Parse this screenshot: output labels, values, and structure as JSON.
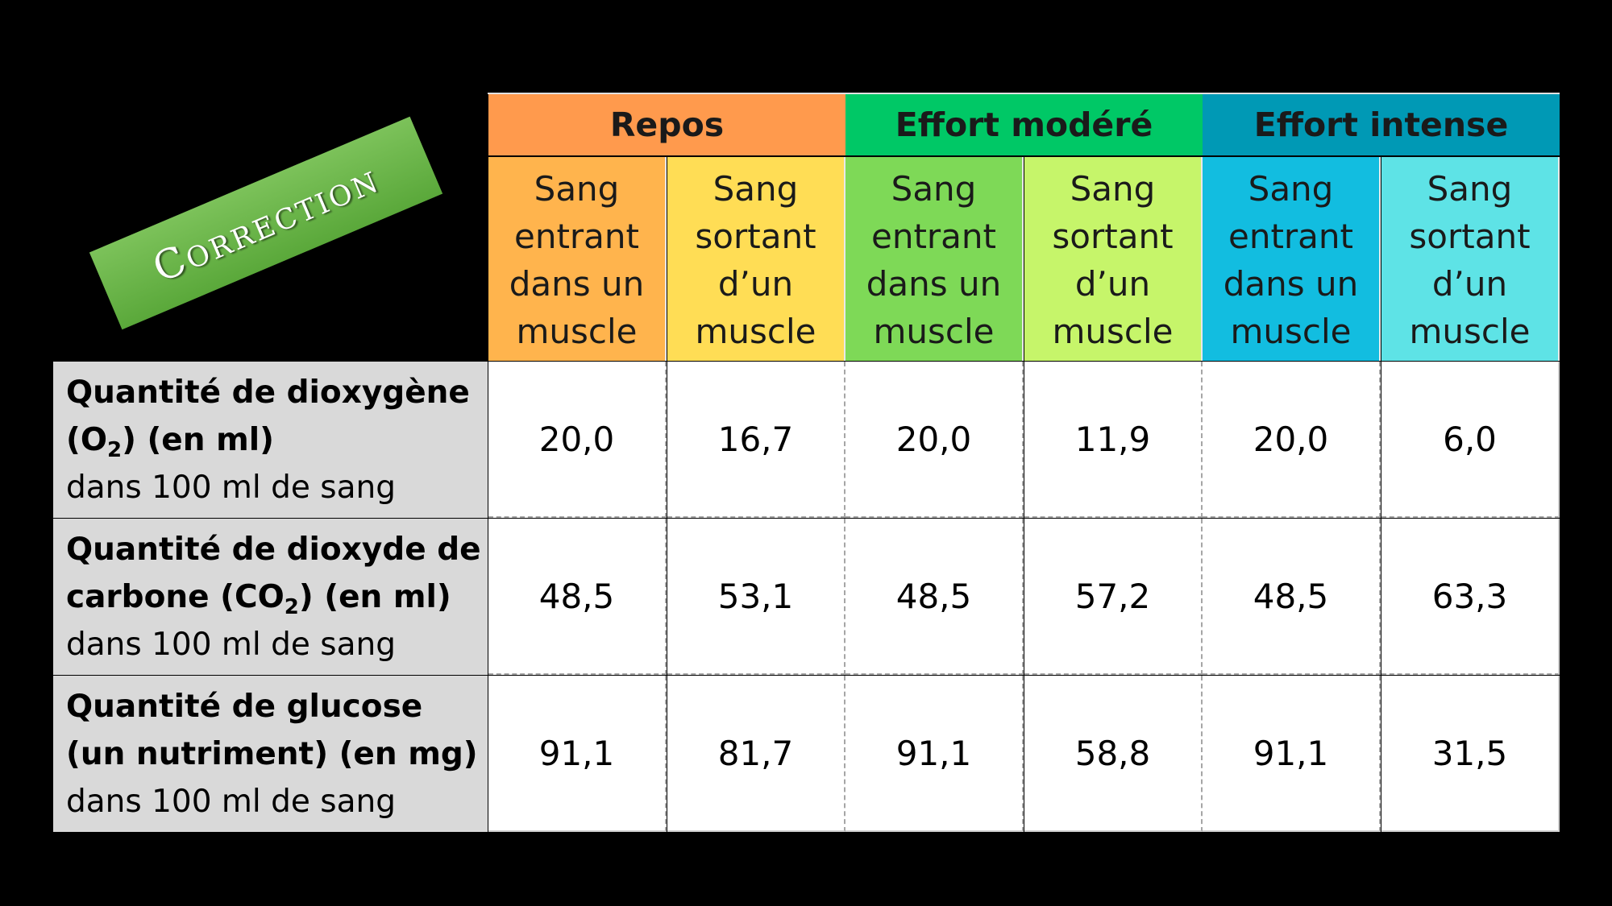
{
  "stamp": {
    "label": "Correction"
  },
  "table": {
    "groups": [
      {
        "label": "Repos",
        "color": "#ff9a4d"
      },
      {
        "label": "Effort modéré",
        "color": "#00c866"
      },
      {
        "label": "Effort intense",
        "color": "#0099b5"
      }
    ],
    "subheaders": [
      {
        "label": "Sang\nentrant\ndans un\nmuscle",
        "color": "#ffb44d"
      },
      {
        "label": "Sang\nsortant\nd’un\nmuscle",
        "color": "#ffdd55"
      },
      {
        "label": "Sang\nentrant\ndans un\nmuscle",
        "color": "#7ed957"
      },
      {
        "label": "Sang\nsortant\nd’un\nmuscle",
        "color": "#c6f56a"
      },
      {
        "label": "Sang\nentrant\ndans un\nmuscle",
        "color": "#12bde0"
      },
      {
        "label": "Sang\nsortant\nd’un\nmuscle",
        "color": "#5ee3e6"
      }
    ],
    "rows": [
      {
        "label_bold_pre": "Quantité de dioxygène (O",
        "label_bold_sub": "2",
        "label_bold_post": ") (en ml)",
        "label_normal": "dans 100 ml de sang",
        "values": [
          "20,0",
          "16,7",
          "20,0",
          "11,9",
          "20,0",
          "6,0"
        ]
      },
      {
        "label_bold_pre": "Quantité de dioxyde de carbone (CO",
        "label_bold_sub": "2",
        "label_bold_post": ") (en ml)",
        "label_normal": "dans 100 ml de sang",
        "values": [
          "48,5",
          "53,1",
          "48,5",
          "57,2",
          "48,5",
          "63,3"
        ]
      },
      {
        "label_bold_pre": "Quantité de glucose (un nutriment) (en mg)",
        "label_bold_sub": "",
        "label_bold_post": "",
        "label_normal": "dans 100 ml de sang",
        "values": [
          "91,1",
          "81,7",
          "91,1",
          "58,8",
          "91,1",
          "31,5"
        ]
      }
    ]
  }
}
